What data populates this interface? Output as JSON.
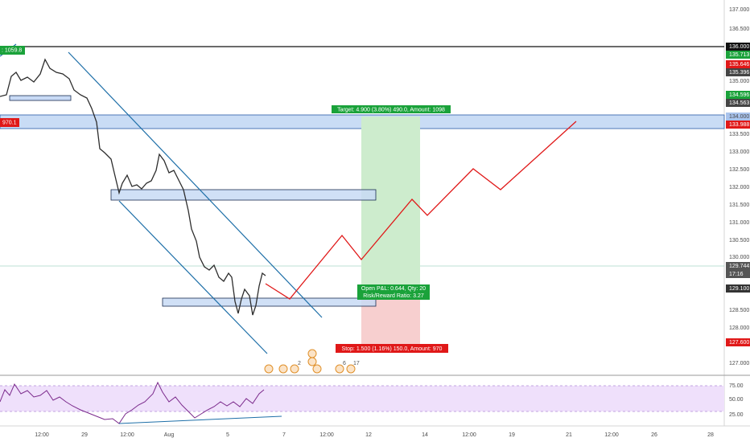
{
  "price_axis": {
    "labels": [
      "137.000",
      "136.500",
      "136.000",
      "135.713",
      "135.646",
      "135.396",
      "135.000",
      "134.596",
      "134.563",
      "134.000",
      "133.988",
      "133.500",
      "133.000",
      "132.500",
      "132.000",
      "131.500",
      "131.000",
      "130.500",
      "130.000",
      "129.744",
      "17:16",
      "129.100",
      "128.500",
      "128.000",
      "127.600",
      "127.000"
    ]
  },
  "rsi_axis": {
    "labels": [
      "75.00",
      "50.00",
      "25.00"
    ]
  },
  "time_axis": {
    "labels": [
      "12:00",
      "29",
      "12:00",
      "Aug",
      "5",
      "7",
      "12:00",
      "12",
      "14",
      "12:00",
      "19",
      "21",
      "12:00",
      "26",
      "28"
    ]
  },
  "left_labels": [
    ": 1059.8",
    "970.1"
  ],
  "position": {
    "target": "Target: 4.900 (3.80%) 490.0, Amount: 1098",
    "open_pnl": "Open P&L: 0.644, Qty: 20",
    "risk_reward": "Risk/Reward Ratio: 3.27",
    "stop": "Stop: 1.500 (1.16%) 150.0, Amount: 970"
  },
  "events": [
    "2",
    "6",
    "17"
  ]
}
